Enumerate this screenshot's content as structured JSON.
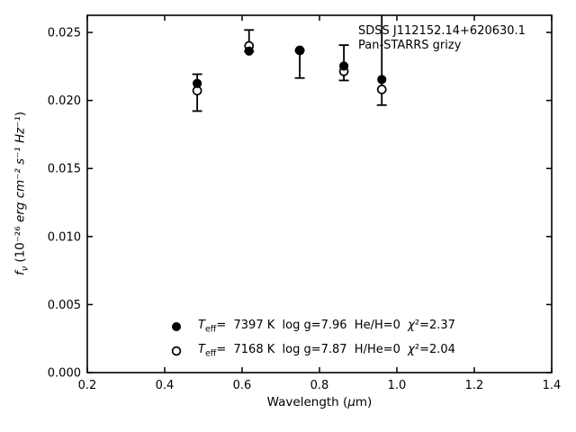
{
  "annotation": {
    "line1": "SDSS J112152.14+620630.1",
    "line2": "Pan-STARRS grizy"
  },
  "legend": {
    "items": [
      {
        "marker": "filled-circle",
        "T": "T",
        "sub": "eff",
        "rest": "=  7397 K  log g=7.96  He/H=0  ",
        "chi": "χ",
        "chi_rest": "²=2.37"
      },
      {
        "marker": "open-circle",
        "T": "T",
        "sub": "eff",
        "rest": "=  7168 K  log g=7.87  H/He=0  ",
        "chi": "χ",
        "chi_rest": "²=2.04"
      }
    ]
  },
  "axes": {
    "xlabel": {
      "pre": "Wavelength (",
      "mu": "μ",
      "post": "m)"
    },
    "ylabel": {
      "f": "f",
      "sub": "ν",
      "rest_upright": " (10⁻²⁶ ",
      "rest_italic": "erg cm⁻² s⁻¹ Hz⁻¹",
      "close": ")"
    }
  },
  "chart_data": {
    "type": "scatter",
    "title": "",
    "xlabel": "Wavelength (μm)",
    "ylabel": "f_ν (10^-26 erg cm^-2 s^-1 Hz^-1)",
    "xlim": [
      0.2,
      1.4
    ],
    "ylim": [
      0,
      0.02626
    ],
    "x_ticks": [
      0.2,
      0.4,
      0.6,
      0.8,
      1.0,
      1.2,
      1.4
    ],
    "x_tick_labels": [
      "0.2",
      "0.4",
      "0.6",
      "0.8",
      "1.0",
      "1.2",
      "1.4"
    ],
    "y_ticks": [
      0,
      0.005,
      0.01,
      0.015,
      0.02,
      0.025
    ],
    "y_tick_labels": [
      "0.000",
      "0.005",
      "0.010",
      "0.015",
      "0.020",
      "0.025"
    ],
    "grid": false,
    "legend_position": "lower center, no frame",
    "bands": [
      "g",
      "r",
      "i",
      "z",
      "y"
    ],
    "series": [
      {
        "name": "Teff=7397 K log g=7.96 He/H=0 chi2=2.37",
        "marker": "filled-circle",
        "x": [
          0.484,
          0.618,
          0.749,
          0.863,
          0.961
        ],
        "y": [
          0.02125,
          0.02363,
          0.02368,
          0.02253,
          0.02154
        ]
      },
      {
        "name": "Teff=7168 K log g=7.87 H/He=0 chi2=2.04",
        "marker": "open-circle",
        "x": [
          0.484,
          0.618,
          0.749,
          0.863,
          0.961
        ],
        "y": [
          0.02072,
          0.02401,
          0.02368,
          0.02214,
          0.02081
        ]
      }
    ],
    "error_bars": {
      "x": [
        0.484,
        0.618,
        0.749,
        0.863,
        0.961
      ],
      "low": [
        0.01922,
        0.0236,
        0.02165,
        0.02147,
        0.01966
      ],
      "high": [
        0.02193,
        0.02518,
        0.02368,
        0.02407,
        0.027
      ],
      "top_clipped": [
        false,
        false,
        false,
        false,
        true
      ]
    }
  }
}
